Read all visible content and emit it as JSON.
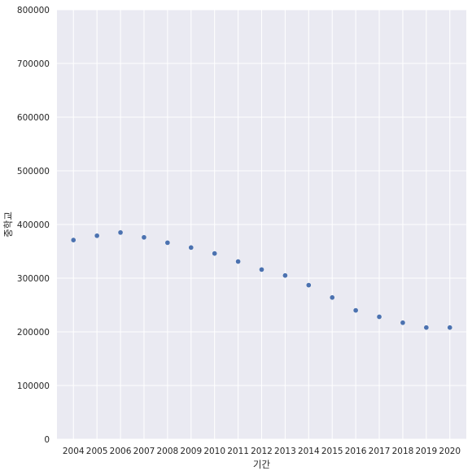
{
  "chart_data": {
    "type": "scatter",
    "title": "",
    "xlabel": "기간",
    "ylabel": "중학교",
    "x": [
      "2004",
      "2005",
      "2006",
      "2007",
      "2008",
      "2009",
      "2010",
      "2011",
      "2012",
      "2013",
      "2014",
      "2015",
      "2016",
      "2017",
      "2018",
      "2019",
      "2020"
    ],
    "series": [
      {
        "values": [
          371000,
          379000,
          385000,
          376000,
          366000,
          357000,
          346000,
          331000,
          316000,
          305000,
          287000,
          264000,
          240000,
          228000,
          217000,
          208000,
          208000
        ],
        "color": "#4c72b0"
      }
    ],
    "ylim": [
      0,
      800000
    ],
    "yticks": [
      0,
      100000,
      200000,
      300000,
      400000,
      500000,
      600000,
      700000,
      800000
    ],
    "grid": true,
    "background": "#eaeaf2",
    "grid_color": "#ffffff"
  }
}
